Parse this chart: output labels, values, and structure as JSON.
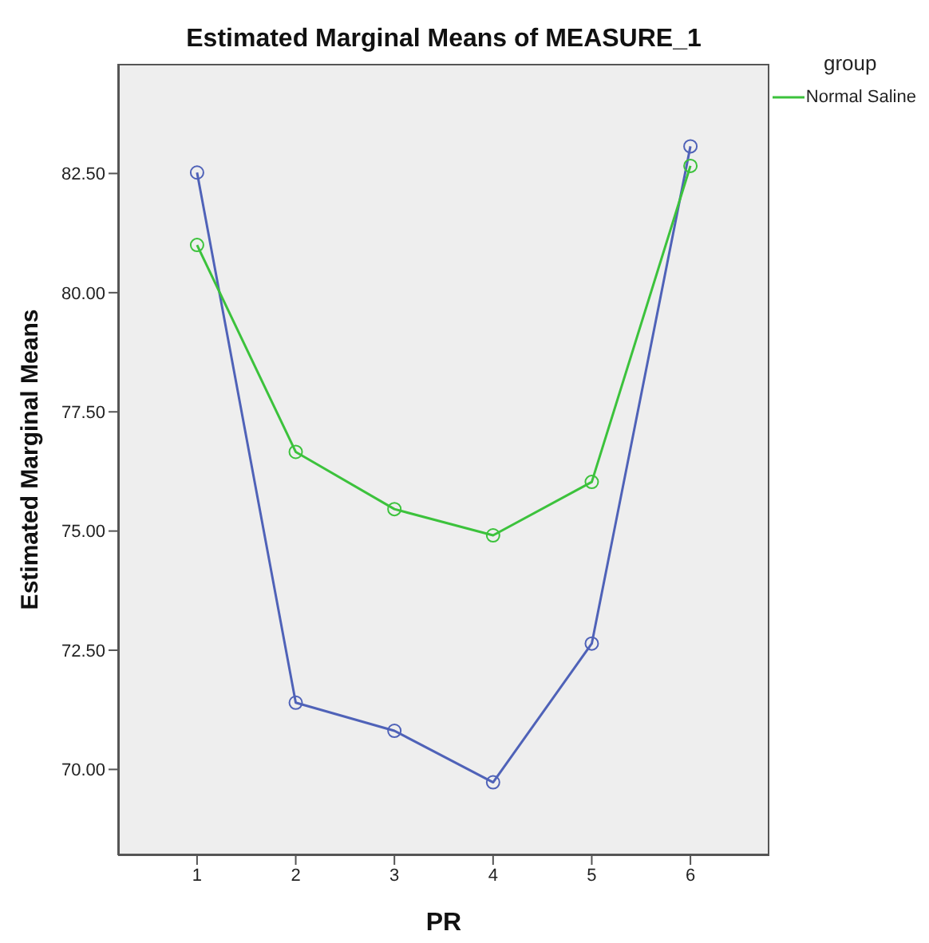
{
  "chart_data": {
    "type": "line",
    "title": "Estimated Marginal Means of MEASURE_1",
    "xlabel": "PR",
    "ylabel": "Estimated Marginal Means",
    "legend_title": "group",
    "x": [
      1,
      2,
      3,
      4,
      5,
      6
    ],
    "series": [
      {
        "color": "#4f62b8",
        "values": [
          82.52,
          71.4,
          70.81,
          69.73,
          72.64,
          83.07
        ]
      },
      {
        "name": "Normal Saline",
        "color": "#3cc23c",
        "values": [
          81.0,
          76.66,
          75.46,
          74.91,
          76.03,
          82.66
        ]
      }
    ],
    "xlim": [
      0.2,
      6.8
    ],
    "xticks": [
      1,
      2,
      3,
      4,
      5,
      6
    ],
    "ylim": [
      68.2,
      84.8
    ],
    "yticks": [
      {
        "value": 70,
        "label": "70.00"
      },
      {
        "value": 72.5,
        "label": "72.50"
      },
      {
        "value": 75,
        "label": "75.00"
      },
      {
        "value": 77.5,
        "label": "77.50"
      },
      {
        "value": 80,
        "label": "80.00"
      },
      {
        "value": 82.5,
        "label": "82.50"
      }
    ],
    "grid": false,
    "legend": "top right",
    "marker": "circle",
    "line_style": "solid"
  }
}
